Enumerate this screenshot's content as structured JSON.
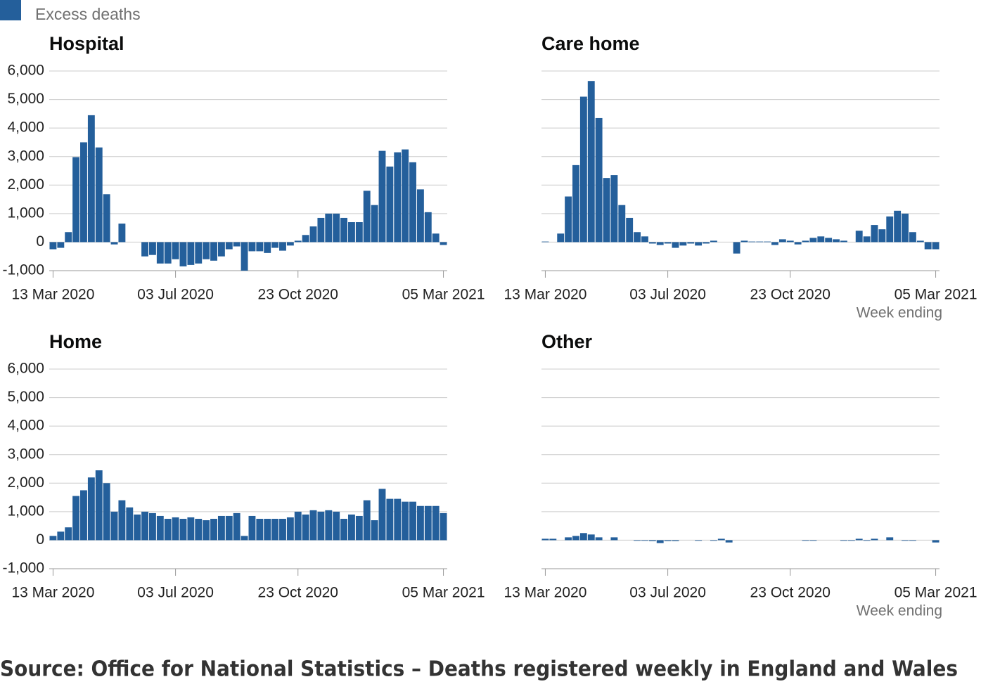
{
  "legend": {
    "label": "Excess deaths",
    "color": "#245f9b"
  },
  "source": "Source: Office for National Statistics – Deaths registered weekly in England and Wales",
  "chart_data": [
    {
      "type": "bar",
      "title": "Hospital",
      "color": "#245f9b",
      "grid": true,
      "categories": [
        "13 Mar 2020",
        null,
        null,
        null,
        null,
        null,
        null,
        null,
        null,
        null,
        null,
        null,
        null,
        null,
        null,
        null,
        "03 Jul 2020",
        null,
        null,
        null,
        null,
        null,
        null,
        null,
        null,
        null,
        null,
        null,
        null,
        null,
        null,
        null,
        "23 Oct 2020",
        null,
        null,
        null,
        null,
        null,
        null,
        null,
        null,
        null,
        null,
        null,
        null,
        null,
        null,
        null,
        null,
        null,
        null,
        "05 Mar 2021"
      ],
      "values": [
        -250,
        -200,
        350,
        2980,
        3500,
        4450,
        3320,
        1680,
        -80,
        650,
        0,
        0,
        -500,
        -450,
        -750,
        -750,
        -600,
        -850,
        -800,
        -750,
        -600,
        -650,
        -500,
        -250,
        -150,
        -1000,
        -320,
        -320,
        -380,
        -200,
        -300,
        -120,
        50,
        250,
        550,
        850,
        1000,
        1000,
        850,
        700,
        700,
        1800,
        1300,
        3200,
        2650,
        3150,
        3250,
        2800,
        1850,
        1050,
        300,
        -100
      ],
      "ylim": [
        -1000,
        6000
      ],
      "yticks": [
        {
          "value": -1000,
          "label": "-1,000"
        },
        0,
        {
          "value": 1000,
          "label": "1,000"
        },
        {
          "value": 2000,
          "label": "2,000"
        },
        {
          "value": 3000,
          "label": "3,000"
        },
        {
          "value": 4000,
          "label": "4,000"
        },
        {
          "value": 5000,
          "label": "5,000"
        },
        {
          "value": 6000,
          "label": "6,000"
        }
      ]
    },
    {
      "type": "bar",
      "title": "Care home",
      "color": "#245f9b",
      "grid": true,
      "xlabel": "Week ending",
      "categories": [
        "13 Mar 2020",
        null,
        null,
        null,
        null,
        null,
        null,
        null,
        null,
        null,
        null,
        null,
        null,
        null,
        null,
        null,
        "03 Jul 2020",
        null,
        null,
        null,
        null,
        null,
        null,
        null,
        null,
        null,
        null,
        null,
        null,
        null,
        null,
        null,
        "23 Oct 2020",
        null,
        null,
        null,
        null,
        null,
        null,
        null,
        null,
        null,
        null,
        null,
        null,
        null,
        null,
        null,
        null,
        null,
        null,
        "05 Mar 2021"
      ],
      "values": [
        20,
        0,
        300,
        1600,
        2700,
        5100,
        5650,
        4350,
        2250,
        2350,
        1300,
        850,
        350,
        200,
        -50,
        -100,
        -50,
        -200,
        -120,
        -50,
        -120,
        -50,
        50,
        0,
        0,
        -400,
        50,
        20,
        20,
        20,
        -100,
        100,
        50,
        -80,
        50,
        150,
        200,
        150,
        100,
        50,
        0,
        400,
        200,
        600,
        450,
        900,
        1100,
        1000,
        350,
        50,
        -250,
        -250
      ],
      "ylim": [
        -1000,
        6000
      ],
      "yticks": [
        -1000,
        0,
        1000,
        2000,
        3000,
        4000,
        5000,
        6000
      ]
    },
    {
      "type": "bar",
      "title": "Home",
      "color": "#245f9b",
      "grid": true,
      "categories": [
        "13 Mar 2020",
        null,
        null,
        null,
        null,
        null,
        null,
        null,
        null,
        null,
        null,
        null,
        null,
        null,
        null,
        null,
        "03 Jul 2020",
        null,
        null,
        null,
        null,
        null,
        null,
        null,
        null,
        null,
        null,
        null,
        null,
        null,
        null,
        null,
        "23 Oct 2020",
        null,
        null,
        null,
        null,
        null,
        null,
        null,
        null,
        null,
        null,
        null,
        null,
        null,
        null,
        null,
        null,
        null,
        null,
        "05 Mar 2021"
      ],
      "values": [
        150,
        300,
        450,
        1550,
        1750,
        2200,
        2450,
        2000,
        1000,
        1400,
        1150,
        900,
        1000,
        950,
        850,
        750,
        800,
        750,
        800,
        750,
        700,
        750,
        850,
        850,
        950,
        150,
        850,
        750,
        750,
        750,
        750,
        800,
        1000,
        900,
        1050,
        1000,
        1050,
        1000,
        750,
        900,
        850,
        1400,
        700,
        1800,
        1450,
        1450,
        1350,
        1350,
        1200,
        1200,
        1200,
        950
      ],
      "ylim": [
        -1000,
        6000
      ],
      "yticks": [
        {
          "value": -1000,
          "label": "-1,000"
        },
        0,
        {
          "value": 1000,
          "label": "1,000"
        },
        {
          "value": 2000,
          "label": "2,000"
        },
        {
          "value": 3000,
          "label": "3,000"
        },
        {
          "value": 4000,
          "label": "4,000"
        },
        {
          "value": 5000,
          "label": "5,000"
        },
        {
          "value": 6000,
          "label": "6,000"
        }
      ]
    },
    {
      "type": "bar",
      "title": "Other",
      "color": "#245f9b",
      "grid": true,
      "xlabel": "Week ending",
      "categories": [
        "13 Mar 2020",
        null,
        null,
        null,
        null,
        null,
        null,
        null,
        null,
        null,
        null,
        null,
        null,
        null,
        null,
        null,
        "03 Jul 2020",
        null,
        null,
        null,
        null,
        null,
        null,
        null,
        null,
        null,
        null,
        null,
        null,
        null,
        null,
        null,
        "23 Oct 2020",
        null,
        null,
        null,
        null,
        null,
        null,
        null,
        null,
        null,
        null,
        null,
        null,
        null,
        null,
        null,
        null,
        null,
        null,
        "05 Mar 2021"
      ],
      "values": [
        50,
        50,
        0,
        100,
        150,
        250,
        200,
        100,
        0,
        100,
        0,
        0,
        -20,
        -20,
        -30,
        -100,
        -30,
        -30,
        0,
        0,
        -20,
        0,
        -20,
        50,
        -80,
        0,
        0,
        0,
        0,
        0,
        0,
        0,
        0,
        0,
        -20,
        -20,
        0,
        0,
        0,
        -20,
        -20,
        50,
        -20,
        50,
        0,
        100,
        0,
        -20,
        -20,
        0,
        0,
        -80
      ],
      "ylim": [
        -1000,
        6000
      ],
      "yticks": [
        -1000,
        0,
        1000,
        2000,
        3000,
        4000,
        5000,
        6000
      ]
    }
  ]
}
